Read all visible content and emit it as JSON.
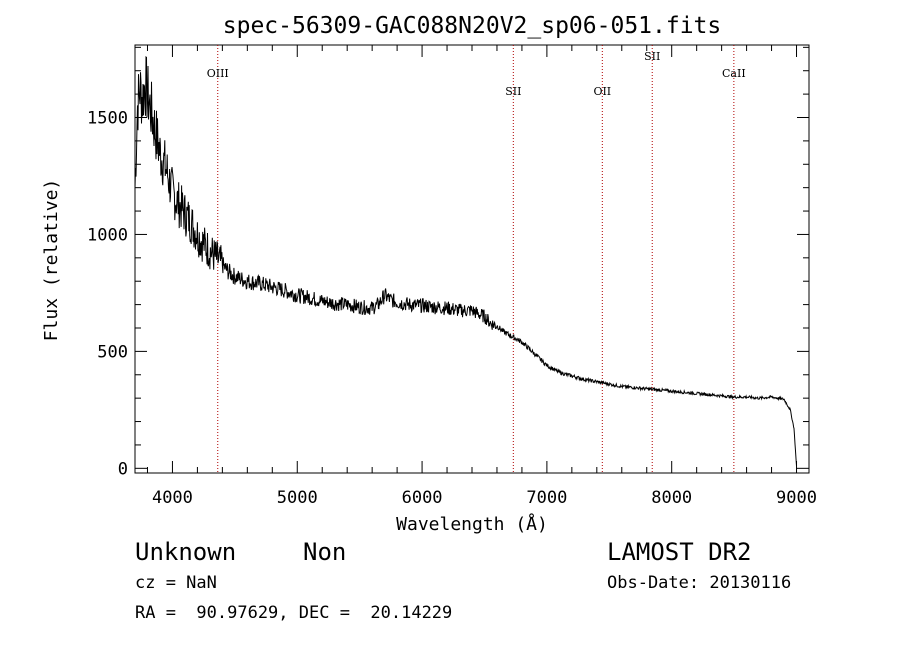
{
  "chart_data": {
    "type": "line",
    "title": "spec-56309-GAC088N20V2_sp06-051.fits",
    "xlabel": "Wavelength (Å)",
    "ylabel": "Flux (relative)",
    "xlim": [
      3700,
      9100
    ],
    "ylim": [
      -20,
      1810
    ],
    "x_ticks": [
      4000,
      5000,
      6000,
      7000,
      8000,
      9000
    ],
    "y_ticks": [
      0,
      500,
      1000,
      1500
    ],
    "grid": false,
    "series": [
      {
        "color": "#000000",
        "x": [
          3700,
          3720,
          3740,
          3760,
          3780,
          3800,
          3820,
          3840,
          3860,
          3880,
          3900,
          3950,
          4000,
          4050,
          4100,
          4150,
          4200,
          4250,
          4300,
          4350,
          4400,
          4450,
          4500,
          4600,
          4700,
          4800,
          4900,
          5000,
          5100,
          5200,
          5300,
          5400,
          5500,
          5600,
          5650,
          5700,
          5750,
          5800,
          5900,
          6000,
          6100,
          6200,
          6300,
          6400,
          6450,
          6500,
          6550,
          6600,
          6650,
          6700,
          6750,
          6800,
          6900,
          7000,
          7100,
          7200,
          7300,
          7400,
          7500,
          7600,
          7700,
          7800,
          7900,
          8000,
          8100,
          8200,
          8300,
          8400,
          8500,
          8600,
          8700,
          8800,
          8850,
          8900,
          8950,
          8980,
          9000
        ],
        "y": [
          1200,
          1550,
          1620,
          1580,
          1650,
          1600,
          1550,
          1500,
          1450,
          1400,
          1350,
          1280,
          1180,
          1130,
          1090,
          1050,
          1000,
          960,
          930,
          900,
          870,
          840,
          820,
          800,
          790,
          775,
          760,
          740,
          730,
          715,
          705,
          700,
          690,
          685,
          700,
          740,
          720,
          710,
          700,
          695,
          690,
          685,
          675,
          675,
          660,
          650,
          620,
          610,
          585,
          570,
          555,
          540,
          490,
          440,
          410,
          395,
          380,
          370,
          360,
          350,
          345,
          340,
          335,
          330,
          325,
          320,
          315,
          310,
          305,
          305,
          300,
          305,
          300,
          295,
          250,
          170,
          10
        ]
      }
    ],
    "line_markers": [
      {
        "label": "OIII",
        "x": 4363,
        "label_row": "middle"
      },
      {
        "label": "SII",
        "x": 6731,
        "label_row": "low"
      },
      {
        "label": "OII",
        "x": 7444,
        "label_row": "low"
      },
      {
        "label": "SII",
        "x": 7844,
        "label_row": "high"
      },
      {
        "label": "CaII",
        "x": 8498,
        "label_row": "middle"
      }
    ],
    "marker_color": "#b00000"
  },
  "footer": {
    "object_class": "Unknown",
    "object_subclass": "Non",
    "release": "LAMOST DR2",
    "redshift": "cz = NaN",
    "obs_date": "Obs-Date: 20130116",
    "coordinates": "RA =  90.97629, DEC =  20.14229"
  }
}
